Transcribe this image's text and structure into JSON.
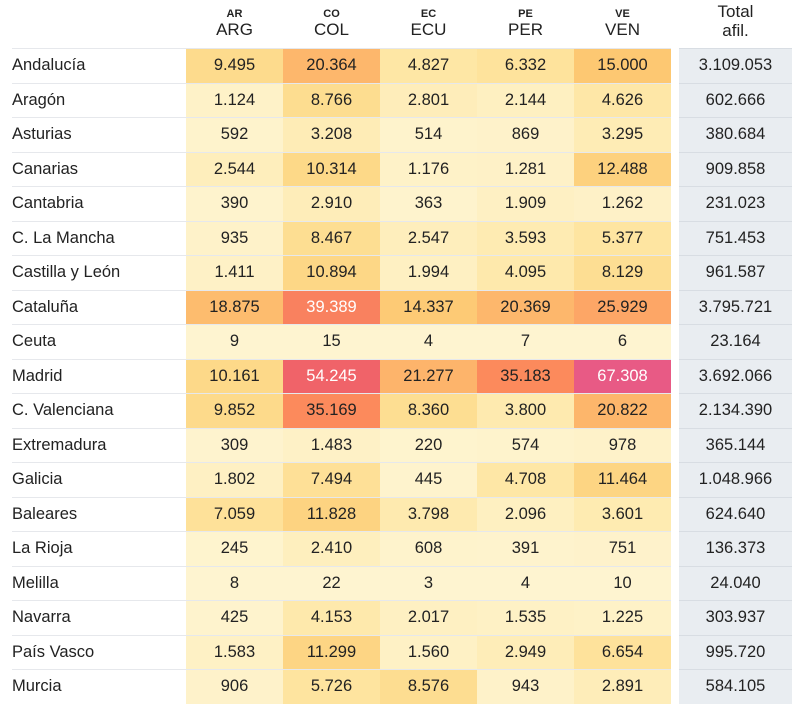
{
  "chart_data": {
    "type": "heatmap",
    "columns": [
      {
        "code": "AR",
        "name": "ARG"
      },
      {
        "code": "CO",
        "name": "COL"
      },
      {
        "code": "EC",
        "name": "ECU"
      },
      {
        "code": "PE",
        "name": "PER"
      },
      {
        "code": "VE",
        "name": "VEN"
      }
    ],
    "total_header": [
      "Total",
      "afil."
    ],
    "rows": [
      {
        "region": "Andalucía",
        "values": [
          "9.495",
          "20.364",
          "4.827",
          "6.332",
          "15.000"
        ],
        "total": "3.109.053"
      },
      {
        "region": "Aragón",
        "values": [
          "1.124",
          "8.766",
          "2.801",
          "2.144",
          "4.626"
        ],
        "total": "602.666"
      },
      {
        "region": "Asturias",
        "values": [
          "592",
          "3.208",
          "514",
          "869",
          "3.295"
        ],
        "total": "380.684"
      },
      {
        "region": "Canarias",
        "values": [
          "2.544",
          "10.314",
          "1.176",
          "1.281",
          "12.488"
        ],
        "total": "909.858"
      },
      {
        "region": "Cantabria",
        "values": [
          "390",
          "2.910",
          "363",
          "1.909",
          "1.262"
        ],
        "total": "231.023"
      },
      {
        "region": "C. La Mancha",
        "values": [
          "935",
          "8.467",
          "2.547",
          "3.593",
          "5.377"
        ],
        "total": "751.453"
      },
      {
        "region": "Castilla y León",
        "values": [
          "1.411",
          "10.894",
          "1.994",
          "4.095",
          "8.129"
        ],
        "total": "961.587"
      },
      {
        "region": "Cataluña",
        "values": [
          "18.875",
          "39.389",
          "14.337",
          "20.369",
          "25.929"
        ],
        "total": "3.795.721"
      },
      {
        "region": "Ceuta",
        "values": [
          "9",
          "15",
          "4",
          "7",
          "6"
        ],
        "total": "23.164"
      },
      {
        "region": "Madrid",
        "values": [
          "10.161",
          "54.245",
          "21.277",
          "35.183",
          "67.308"
        ],
        "total": "3.692.066"
      },
      {
        "region": "C. Valenciana",
        "values": [
          "9.852",
          "35.169",
          "8.360",
          "3.800",
          "20.822"
        ],
        "total": "2.134.390"
      },
      {
        "region": "Extremadura",
        "values": [
          "309",
          "1.483",
          "220",
          "574",
          "978"
        ],
        "total": "365.144"
      },
      {
        "region": "Galicia",
        "values": [
          "1.802",
          "7.494",
          "445",
          "4.708",
          "11.464"
        ],
        "total": "1.048.966"
      },
      {
        "region": "Baleares",
        "values": [
          "7.059",
          "11.828",
          "3.798",
          "2.096",
          "3.601"
        ],
        "total": "624.640"
      },
      {
        "region": "La Rioja",
        "values": [
          "245",
          "2.410",
          "608",
          "391",
          "751"
        ],
        "total": "136.373"
      },
      {
        "region": "Melilla",
        "values": [
          "8",
          "22",
          "3",
          "4",
          "10"
        ],
        "total": "24.040"
      },
      {
        "region": "Navarra",
        "values": [
          "425",
          "4.153",
          "2.017",
          "1.535",
          "1.225"
        ],
        "total": "303.937"
      },
      {
        "region": "País Vasco",
        "values": [
          "1.583",
          "11.299",
          "1.560",
          "2.949",
          "6.654"
        ],
        "total": "995.720"
      },
      {
        "region": "Murcia",
        "values": [
          "906",
          "5.726",
          "8.576",
          "943",
          "2.891"
        ],
        "total": "584.105"
      }
    ],
    "color_scale": {
      "stops": [
        [
          0,
          "#fef4d0"
        ],
        [
          2000,
          "#fef0c2"
        ],
        [
          5000,
          "#fee6a3"
        ],
        [
          10000,
          "#fdda8a"
        ],
        [
          15000,
          "#fdc872"
        ],
        [
          22000,
          "#fdb26a"
        ],
        [
          35000,
          "#fc8a5c"
        ],
        [
          54000,
          "#f06368"
        ],
        [
          67000,
          "#e85a85"
        ]
      ],
      "white_text_above": 38000
    }
  }
}
